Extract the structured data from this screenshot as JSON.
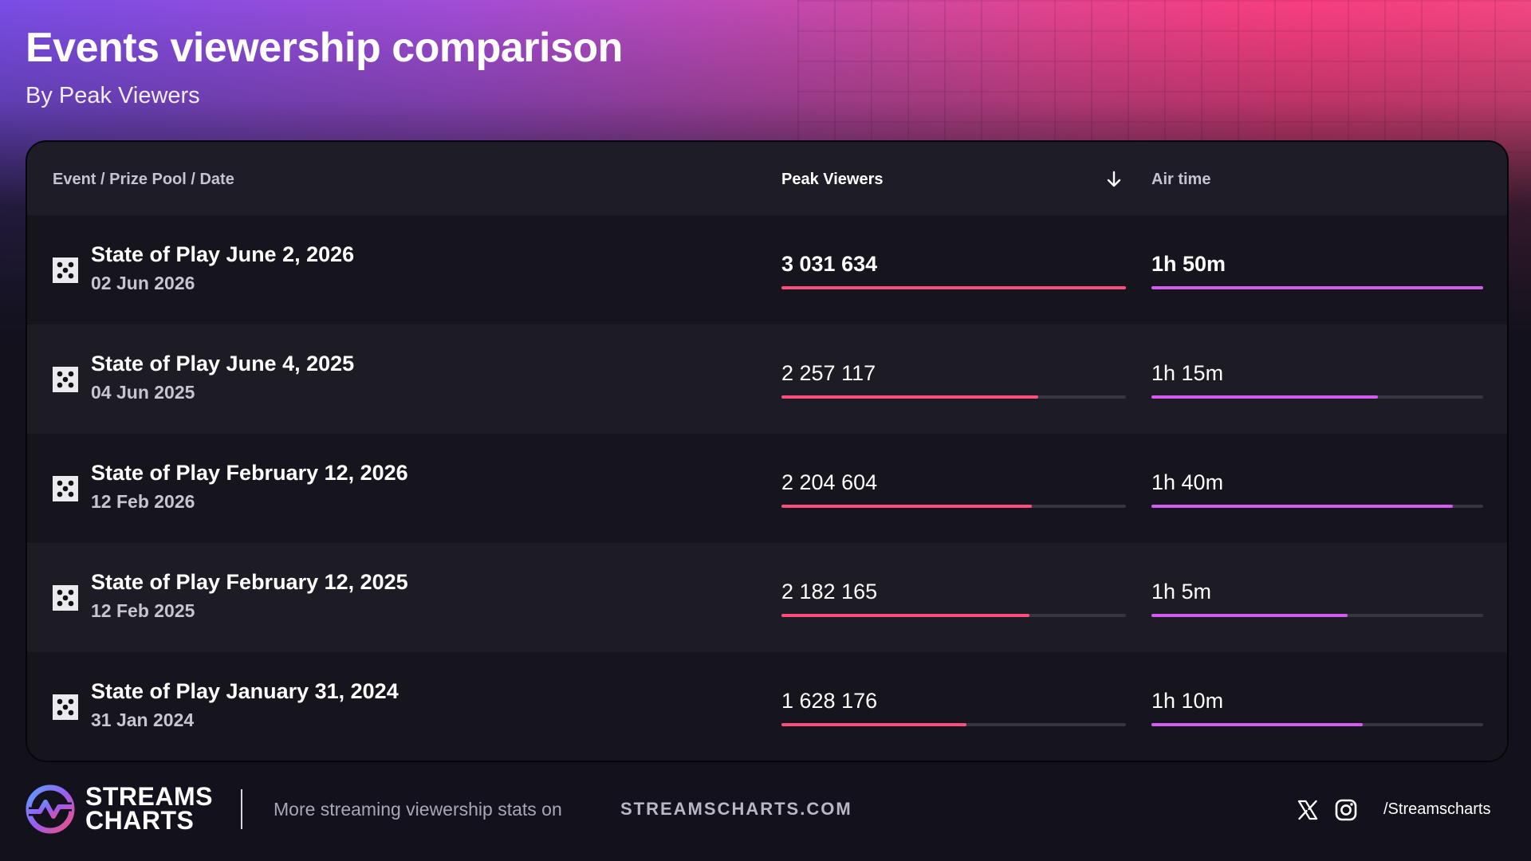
{
  "header": {
    "title": "Events viewership comparison",
    "subtitle": "By Peak Viewers"
  },
  "table": {
    "columns": {
      "event": "Event / Prize Pool / Date",
      "peak": "Peak Viewers",
      "air": "Air time"
    },
    "sort_icon": "arrow-down-icon",
    "row_icon": "dice-icon",
    "rows": [
      {
        "name": "State of Play June 2, 2026",
        "date": "02 Jun 2026",
        "peak": "3 031 634",
        "air": "1h 50m",
        "peak_fraction": 1.0,
        "air_fraction": 1.0
      },
      {
        "name": "State of Play June 4, 2025",
        "date": "04 Jun 2025",
        "peak": "2 257 117",
        "air": "1h 15m",
        "peak_fraction": 0.745,
        "air_fraction": 0.682
      },
      {
        "name": "State of Play February 12, 2026",
        "date": "12 Feb 2026",
        "peak": "2 204 604",
        "air": "1h 40m",
        "peak_fraction": 0.727,
        "air_fraction": 0.909
      },
      {
        "name": "State of Play February 12, 2025",
        "date": "12 Feb 2025",
        "peak": "2 182 165",
        "air": "1h 5m",
        "peak_fraction": 0.72,
        "air_fraction": 0.591
      },
      {
        "name": "State of Play January 31, 2024",
        "date": "31 Jan 2024",
        "peak": "1 628 176",
        "air": "1h 10m",
        "peak_fraction": 0.537,
        "air_fraction": 0.636
      }
    ]
  },
  "colors": {
    "peak_bar": "#ff4d7e",
    "air_bar": "#d35cf0",
    "track": "#373541"
  },
  "footer": {
    "logo_line1": "STREAMS",
    "logo_line2": "CHARTS",
    "promo": "More streaming viewership stats on",
    "promo_link": "STREAMSCHARTS.COM",
    "social_icons": [
      "x-icon",
      "instagram-icon"
    ],
    "handle": "/Streamscharts"
  }
}
